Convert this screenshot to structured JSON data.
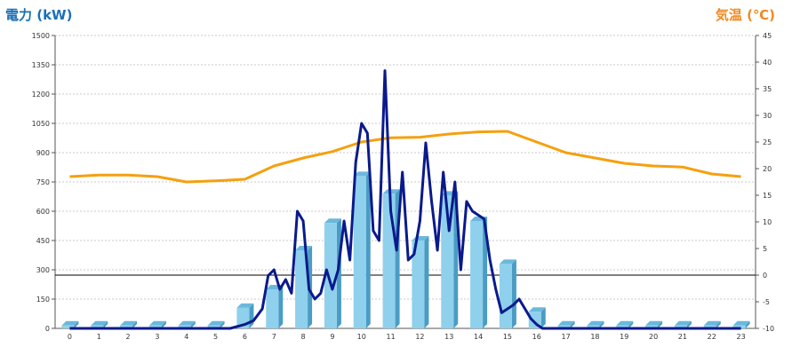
{
  "chart_data": {
    "type": "bar+line",
    "left_axis_title": "電力 (kW)",
    "right_axis_title": "気温 (℃)",
    "x_categories": [
      "0",
      "1",
      "2",
      "3",
      "4",
      "5",
      "6",
      "7",
      "8",
      "9",
      "10",
      "11",
      "12",
      "13",
      "14",
      "15",
      "16",
      "17",
      "18",
      "19",
      "20",
      "21",
      "22",
      "23"
    ],
    "left_ylim": [
      0,
      1500
    ],
    "left_yticks": [
      0,
      150,
      300,
      450,
      600,
      750,
      900,
      1050,
      1200,
      1350,
      1500
    ],
    "right_ylim": [
      -10,
      45
    ],
    "right_yticks": [
      -10,
      -5,
      0,
      5,
      10,
      15,
      20,
      25,
      30,
      35,
      40,
      45
    ],
    "grid": true,
    "colors": {
      "bar": "#8fd0ec",
      "bar_side": "#4a9cc4",
      "power_line": "#0a1a8c",
      "temp_line": "#f5a00f",
      "zero_line": "#000000"
    },
    "bar_series": {
      "values": [
        15,
        15,
        15,
        15,
        15,
        15,
        105,
        200,
        400,
        540,
        780,
        690,
        450,
        680,
        550,
        330,
        85,
        15,
        15,
        15,
        15,
        15,
        15,
        15
      ]
    },
    "power_line": {
      "x": [
        0,
        1,
        2,
        3,
        4,
        5,
        5.5,
        6,
        6.3,
        6.6,
        6.8,
        7,
        7.2,
        7.4,
        7.6,
        7.8,
        8,
        8.2,
        8.4,
        8.6,
        8.8,
        9,
        9.2,
        9.4,
        9.6,
        9.8,
        10,
        10.2,
        10.4,
        10.6,
        10.8,
        11,
        11.2,
        11.4,
        11.6,
        11.8,
        12,
        12.2,
        12.4,
        12.6,
        12.8,
        13,
        13.2,
        13.4,
        13.6,
        13.8,
        14,
        14.2,
        14.4,
        14.6,
        14.8,
        15,
        15.2,
        15.4,
        15.6,
        15.8,
        16,
        16.2,
        16.4,
        17,
        18,
        19,
        20,
        21,
        22,
        23
      ],
      "y": [
        0,
        0,
        0,
        0,
        0,
        0,
        0,
        20,
        40,
        100,
        270,
        300,
        200,
        250,
        180,
        600,
        550,
        200,
        150,
        180,
        300,
        200,
        300,
        550,
        350,
        850,
        1050,
        1000,
        500,
        450,
        1320,
        600,
        400,
        800,
        350,
        380,
        550,
        950,
        650,
        400,
        800,
        500,
        750,
        300,
        650,
        600,
        580,
        560,
        350,
        200,
        80,
        100,
        120,
        150,
        100,
        50,
        20,
        0,
        0,
        0,
        0,
        0,
        0,
        0,
        0,
        0
      ],
      "x_left": [
        0,
        1,
        2,
        3,
        4,
        5,
        5.5,
        6,
        6.3,
        6.6,
        6.8,
        7,
        7.2,
        7.4,
        7.6,
        7.8,
        8,
        8.2,
        8.4,
        8.6,
        8.8,
        9,
        9.2,
        9.4,
        9.6,
        9.8,
        10,
        10.2,
        10.4,
        10.6,
        10.8,
        11,
        11.2,
        11.4,
        11.6,
        11.8,
        12,
        12.2,
        12.4,
        12.6,
        12.8,
        13,
        13.2,
        13.4,
        13.6,
        13.8,
        14,
        14.2,
        14.4,
        14.6,
        14.8,
        15,
        15.2,
        15.4,
        15.6,
        15.8,
        16,
        16.2,
        16.4,
        17,
        18,
        19,
        20,
        21,
        22,
        23
      ]
    },
    "temp_line": {
      "x": [
        0,
        1,
        2,
        3,
        4,
        5,
        6,
        7,
        8,
        9,
        10,
        11,
        12,
        13,
        14,
        15,
        16,
        17,
        18,
        19,
        20,
        21,
        22,
        23
      ],
      "y": [
        18.5,
        18.8,
        18.8,
        18.5,
        17.5,
        17.7,
        18,
        20.5,
        22,
        23.2,
        25,
        25.8,
        25.9,
        26.5,
        26.9,
        27,
        25,
        23,
        22,
        21,
        20.5,
        20.3,
        19,
        18.5
      ]
    }
  }
}
